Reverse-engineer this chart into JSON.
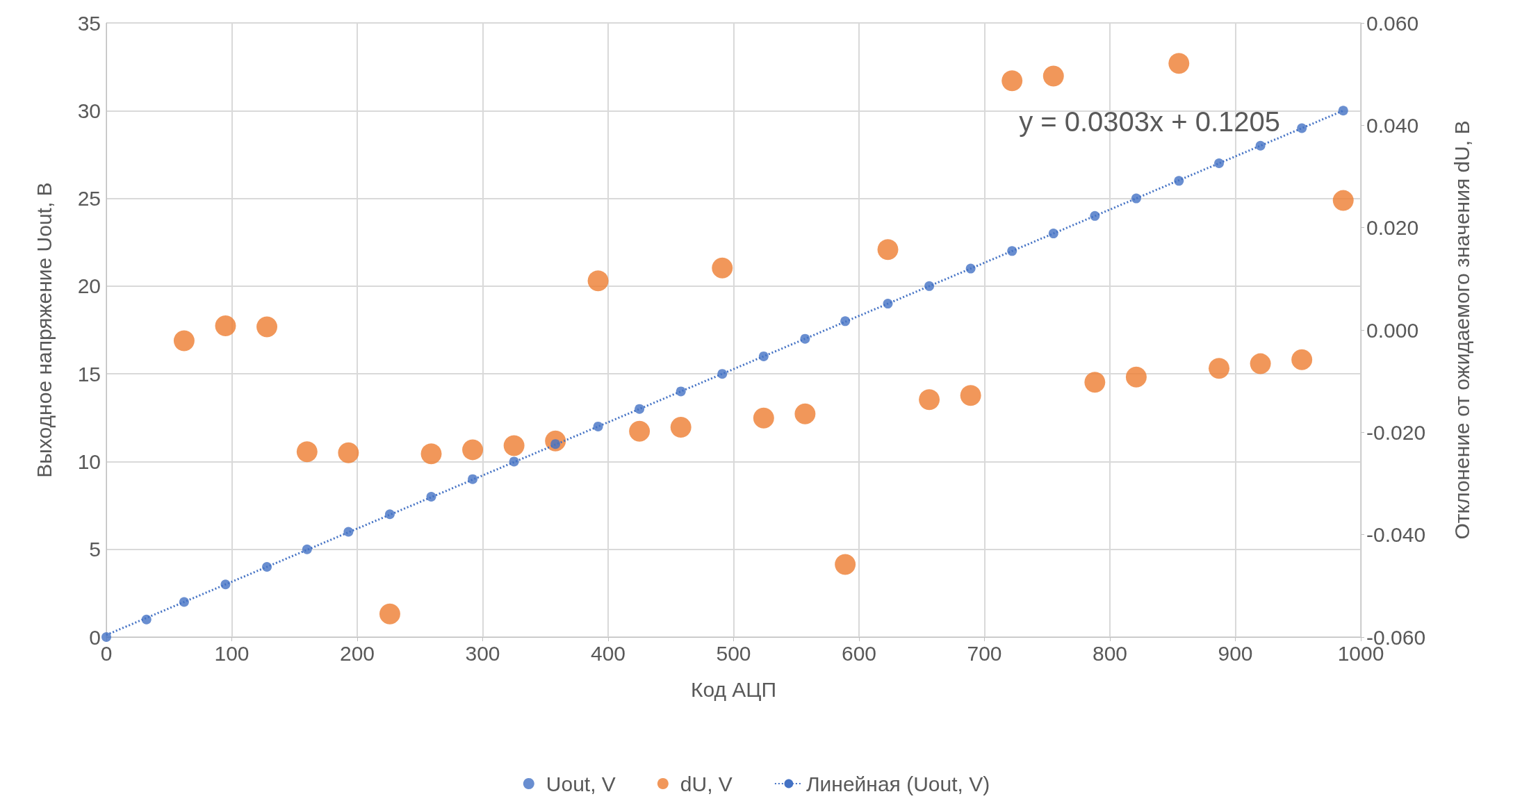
{
  "chart_data": {
    "type": "scatter",
    "xlabel": "Код АЦП",
    "ylabel": "Выходное напряжение Uout, В",
    "y2label": "Отклонение от ожидаемого значения dU, В",
    "xlim": [
      0,
      1000
    ],
    "xticks": [
      0,
      100,
      200,
      300,
      400,
      500,
      600,
      700,
      800,
      900,
      1000
    ],
    "ylim": [
      0,
      35
    ],
    "yticks": [
      0,
      5,
      10,
      15,
      20,
      25,
      30,
      35
    ],
    "y2lim": [
      -0.06,
      0.06
    ],
    "y2ticks": [
      {
        "value": -0.06,
        "label": "-0.060"
      },
      {
        "value": -0.04,
        "label": "-0.040"
      },
      {
        "value": -0.02,
        "label": "-0.020"
      },
      {
        "value": 0,
        "label": "0.000"
      },
      {
        "value": 0.02,
        "label": "0.020"
      },
      {
        "value": 0.04,
        "label": "0.040"
      },
      {
        "value": 0.06,
        "label": "0.060"
      }
    ],
    "grid": true,
    "legend": "bottom",
    "marker": "circle",
    "annotations": [
      "y = 0.0303x + 0.1205"
    ],
    "series": [
      {
        "name": "Uout, V",
        "color": "#4472c4",
        "x": [
          0,
          32,
          62,
          95,
          128,
          160,
          193,
          226,
          259,
          292,
          325,
          358,
          392,
          425,
          458,
          491,
          524,
          557,
          589,
          623,
          656,
          689,
          722,
          755,
          788,
          821,
          855,
          887,
          920,
          953,
          986
        ],
        "values": [
          0,
          1,
          2,
          3,
          4,
          5,
          6,
          7,
          8,
          9,
          10,
          11,
          12,
          13,
          14,
          15,
          16,
          17,
          18,
          19,
          20,
          21,
          22,
          23,
          24,
          25,
          26,
          27,
          28,
          29,
          30
        ]
      },
      {
        "name": "dU, V",
        "color": "#ed7d31",
        "axis": "y2",
        "x": [
          62,
          95,
          128,
          160,
          193,
          226,
          259,
          292,
          325,
          358,
          392,
          425,
          458,
          491,
          524,
          557,
          589,
          623,
          656,
          689,
          722,
          755,
          788,
          821,
          855,
          887,
          920,
          953,
          986
        ],
        "values": [
          -0.0021,
          0.0008,
          0.0006,
          -0.0238,
          -0.024,
          -0.0555,
          -0.0242,
          -0.0234,
          -0.0226,
          -0.0217,
          0.0096,
          -0.0198,
          -0.019,
          0.0121,
          -0.0172,
          -0.0164,
          -0.0458,
          0.0157,
          -0.0136,
          -0.0128,
          0.0487,
          0.0496,
          -0.0102,
          -0.0092,
          0.0521,
          -0.0075,
          -0.0066,
          -0.0058,
          0.0253
        ]
      },
      {
        "name": "Линейная (Uout, V)",
        "color": "#4472c4",
        "type": "line",
        "line_style": "dotted",
        "marker": "none",
        "x": [
          0,
          986
        ],
        "values": [
          0.12,
          30.0
        ]
      }
    ]
  }
}
